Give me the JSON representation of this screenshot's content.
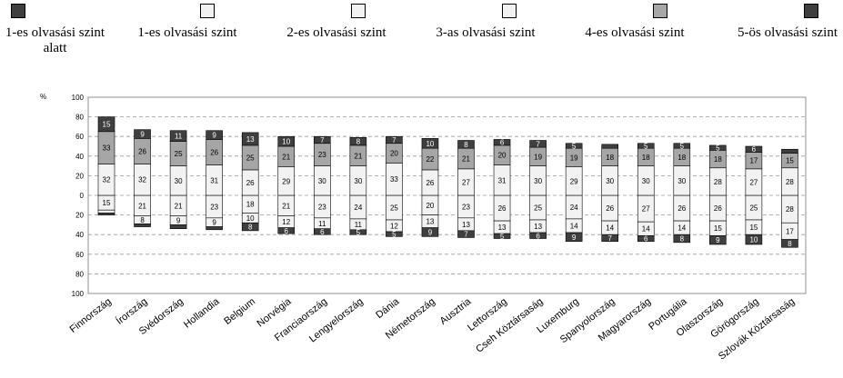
{
  "legend": [
    {
      "label": "1-es olvasási szint alatt",
      "color": "#3f3f3f"
    },
    {
      "label": "1-es olvasási szint",
      "color": "#f2f2f2"
    },
    {
      "label": "2-es olvasási szint",
      "color": "#f2f2f2"
    },
    {
      "label": "3-as olvasási szint",
      "color": "#f2f2f2"
    },
    {
      "label": "4-es olvasási szint",
      "color": "#a6a6a6"
    },
    {
      "label": "5-ös olvasási szint",
      "color": "#3f3f3f"
    }
  ],
  "chart_data": {
    "type": "bar",
    "stacked": "diverging",
    "ylabel": "%",
    "ylim": [
      -100,
      100
    ],
    "yticks": [
      100,
      80,
      60,
      40,
      20,
      0,
      20,
      40,
      60,
      80,
      100
    ],
    "grid": true,
    "categories": [
      "Finnország",
      "Írország",
      "Svédország",
      "Hollandia",
      "Belgium",
      "Norvégia",
      "Franciaország",
      "Lengyelország",
      "Dánia",
      "Németország",
      "Ausztria",
      "Lettország",
      "Cseh Köztársaság",
      "Luxemburg",
      "Spanyolország",
      "Magyarország",
      "Portugália",
      "Olaszország",
      "Görögország",
      "Szlovák Köztársaság"
    ],
    "series": [
      {
        "name": "1-es olvasási szint alatt",
        "values": [
          2,
          3,
          4,
          3,
          8,
          6,
          6,
          5,
          5,
          9,
          7,
          5,
          6,
          9,
          7,
          6,
          8,
          9,
          10,
          8
        ]
      },
      {
        "name": "1-es olvasási szint",
        "values": [
          3,
          8,
          9,
          9,
          10,
          12,
          11,
          11,
          12,
          13,
          13,
          13,
          13,
          14,
          14,
          14,
          14,
          15,
          15,
          17
        ]
      },
      {
        "name": "2-es olvasási szint",
        "values": [
          15,
          21,
          21,
          23,
          18,
          21,
          23,
          24,
          25,
          20,
          23,
          26,
          25,
          24,
          26,
          27,
          26,
          26,
          25,
          28
        ]
      },
      {
        "name": "3-as olvasási szint",
        "values": [
          32,
          32,
          30,
          31,
          26,
          29,
          30,
          30,
          33,
          26,
          27,
          31,
          30,
          29,
          30,
          30,
          30,
          28,
          27,
          28
        ]
      },
      {
        "name": "4-es olvasási szint",
        "values": [
          33,
          26,
          25,
          26,
          25,
          21,
          23,
          21,
          20,
          22,
          21,
          20,
          19,
          19,
          18,
          18,
          18,
          18,
          17,
          15
        ]
      },
      {
        "name": "5-ös olvasási szint",
        "values": [
          15,
          9,
          11,
          9,
          13,
          10,
          7,
          8,
          7,
          10,
          8,
          6,
          7,
          5,
          4,
          5,
          5,
          5,
          6,
          4
        ]
      }
    ]
  }
}
